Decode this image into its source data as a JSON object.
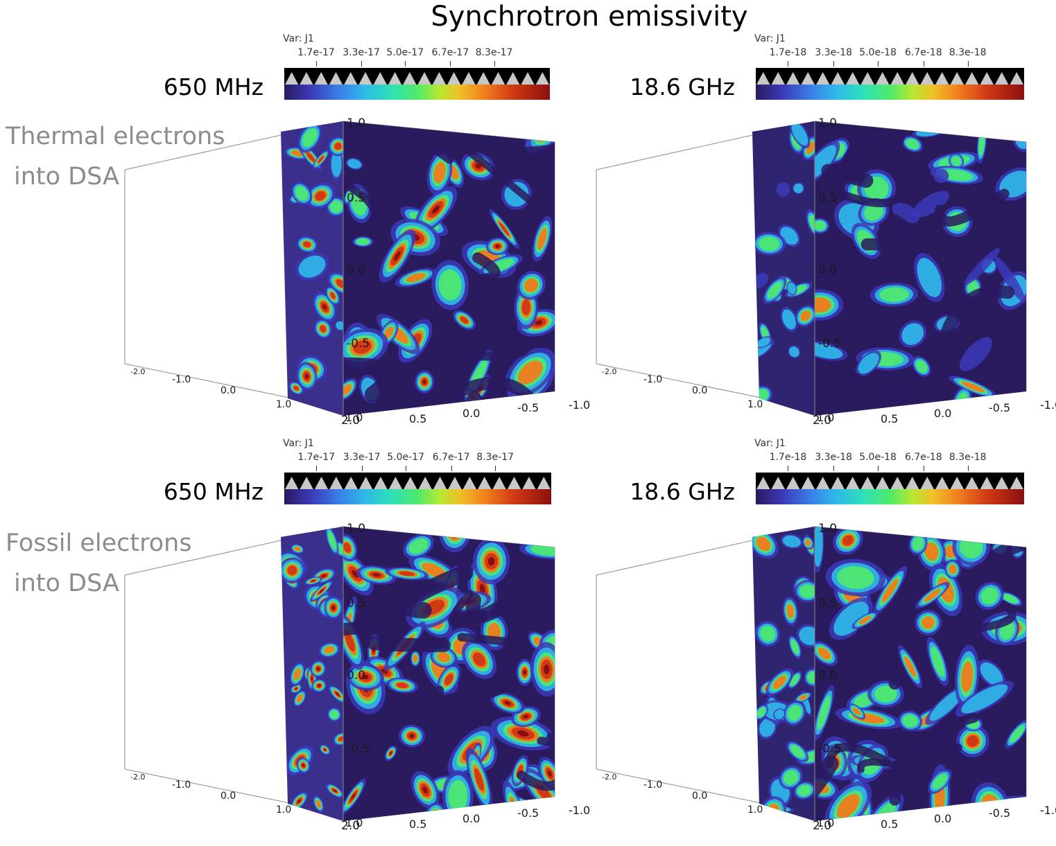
{
  "title": "Synchrotron emissivity",
  "rows": [
    {
      "label_line1": "Thermal electrons",
      "label_line2": "into DSA"
    },
    {
      "label_line1": "Fossil electrons",
      "label_line2": "into DSA"
    }
  ],
  "colorbars": [
    {
      "var": "Var: J1",
      "freq": "650 MHz",
      "ticks": [
        "1.7e-17",
        "3.3e-17",
        "5.0e-17",
        "6.7e-17",
        "8.3e-17"
      ]
    },
    {
      "var": "Var: J1",
      "freq": "18.6 GHz",
      "ticks": [
        "1.7e-18",
        "3.3e-18",
        "5.0e-18",
        "6.7e-18",
        "8.3e-18"
      ]
    },
    {
      "var": "Var: J1",
      "freq": "650 MHz",
      "ticks": [
        "1.7e-17",
        "3.3e-17",
        "5.0e-17",
        "6.7e-17",
        "8.3e-17"
      ]
    },
    {
      "var": "Var: J1",
      "freq": "18.6 GHz",
      "ticks": [
        "1.7e-18",
        "3.3e-18",
        "5.0e-18",
        "6.7e-18",
        "8.3e-18"
      ]
    }
  ],
  "axes": {
    "vertical_ticks": [
      "1.0",
      "0.5",
      "0.0",
      "-0.5"
    ],
    "depth_ticks": [
      "-2.0",
      "-1.0",
      "0.0",
      "1.0",
      "2.0"
    ],
    "front_ticks": [
      "1.0",
      "0.5",
      "0.0",
      "-0.5",
      "-1.0"
    ]
  },
  "colors": {
    "background": "#2a1a5e",
    "low": "#3b3ab8",
    "mid": "#2fb9e8",
    "green": "#4fea6a",
    "high": "#d03a14",
    "peak": "#8c0f0f",
    "label_gray": "#8c8c8c"
  },
  "panels": [
    {
      "variant": "thermal-650"
    },
    {
      "variant": "thermal-186"
    },
    {
      "variant": "fossil-650"
    },
    {
      "variant": "fossil-186"
    }
  ]
}
